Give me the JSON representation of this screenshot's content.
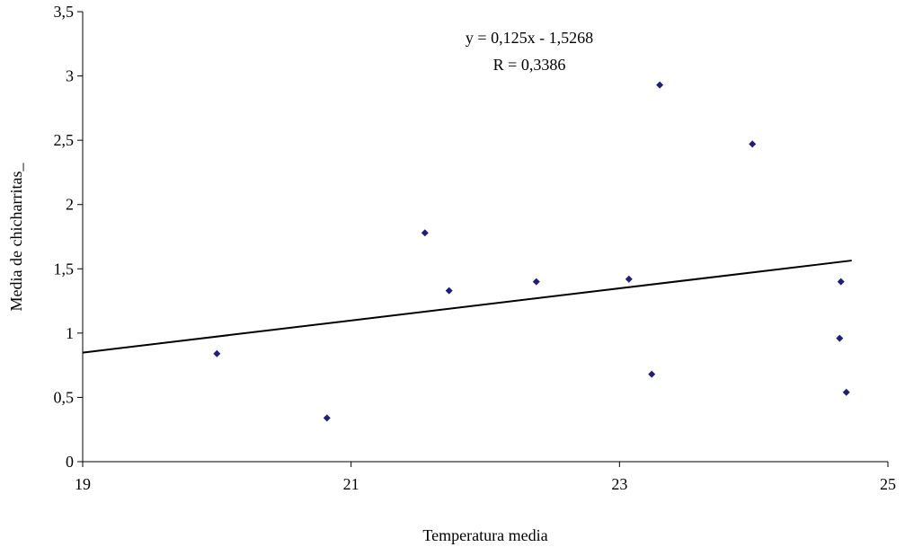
{
  "chart_data": {
    "type": "scatter",
    "xlabel": "Temperatura media",
    "ylabel": "Media de chicharritas_",
    "xlim": [
      19,
      25
    ],
    "ylim": [
      0,
      3.5
    ],
    "x_ticks": [
      19,
      21,
      23,
      25
    ],
    "x_tick_labels": [
      "19",
      "21",
      "23",
      "25"
    ],
    "y_ticks": [
      0,
      0.5,
      1,
      1.5,
      2,
      2.5,
      3,
      3.5
    ],
    "y_tick_labels": [
      "0",
      "0,5",
      "1",
      "1,5",
      "2",
      "2,5",
      "3",
      "3,5"
    ],
    "grid": false,
    "legend": "none",
    "point_color": "#1f1f7a",
    "trendline_color": "#000000",
    "points": [
      {
        "x": 20.0,
        "y": 0.84
      },
      {
        "x": 20.82,
        "y": 0.34
      },
      {
        "x": 21.55,
        "y": 1.78
      },
      {
        "x": 21.73,
        "y": 1.33
      },
      {
        "x": 22.38,
        "y": 1.4
      },
      {
        "x": 23.07,
        "y": 1.42
      },
      {
        "x": 23.24,
        "y": 0.68
      },
      {
        "x": 23.3,
        "y": 2.93
      },
      {
        "x": 23.99,
        "y": 2.47
      },
      {
        "x": 24.65,
        "y": 1.4
      },
      {
        "x": 24.64,
        "y": 0.96
      },
      {
        "x": 24.69,
        "y": 0.54
      }
    ],
    "trendline": {
      "slope": 0.125,
      "intercept": -1.5268,
      "x_range": [
        19,
        24.73
      ]
    },
    "annotations": [
      "y = 0,125x - 1,5268",
      "R = 0,3386"
    ]
  }
}
